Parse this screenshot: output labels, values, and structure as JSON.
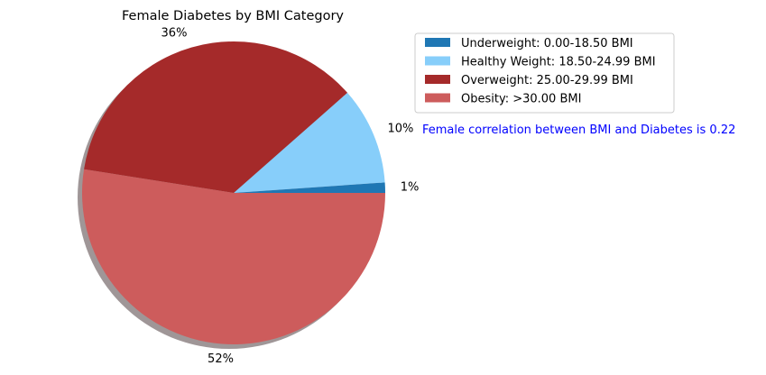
{
  "chart_data": {
    "type": "pie",
    "title": "Female Diabetes by BMI Category",
    "categories": [
      "Underweight: 0.00-18.50 BMI",
      "Healthy Weight: 18.50-24.99 BMI",
      "Overweight: 25.00-29.99 BMI",
      "Obesity: >30.00 BMI"
    ],
    "values": [
      1.1,
      10.4,
      36.0,
      52.5
    ],
    "labels": [
      "1%",
      "10%",
      "36%",
      "52%"
    ],
    "colors": [
      "#1f77b4",
      "#87cefa",
      "#a52a2a",
      "#cd5c5c"
    ],
    "start_angle_deg": 0,
    "direction": "counterclockwise",
    "shadow": true,
    "legend_position": "top-right",
    "annotation": "Female correlation between BMI and Diabetes is 0.22",
    "annotation_color": "#0000ff"
  }
}
